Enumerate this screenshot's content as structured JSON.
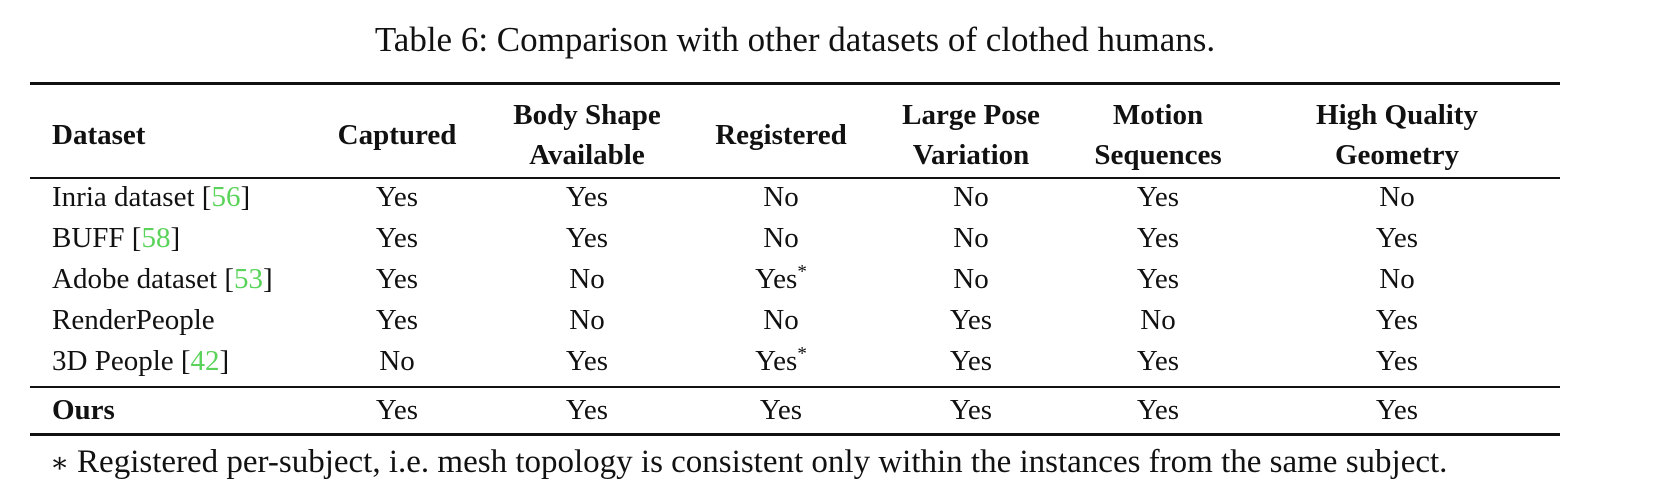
{
  "caption": "Table 6: Comparison with other datasets of clothed humans.",
  "headers": [
    {
      "line1": "Dataset",
      "line2": ""
    },
    {
      "line1": "Captured",
      "line2": ""
    },
    {
      "line1": "Body Shape",
      "line2": "Available"
    },
    {
      "line1": "Registered",
      "line2": ""
    },
    {
      "line1": "Large Pose",
      "line2": "Variation"
    },
    {
      "line1": "Motion",
      "line2": "Sequences"
    },
    {
      "line1": "High Quality",
      "line2": "Geometry"
    }
  ],
  "rows": [
    {
      "name": "Inria dataset ",
      "ref": "56",
      "cells": [
        "Yes",
        "Yes",
        "No",
        "No",
        "Yes",
        "No"
      ],
      "stars": [
        false,
        false,
        false,
        false,
        false,
        false
      ]
    },
    {
      "name": "BUFF ",
      "ref": "58",
      "cells": [
        "Yes",
        "Yes",
        "No",
        "No",
        "Yes",
        "Yes"
      ],
      "stars": [
        false,
        false,
        false,
        false,
        false,
        false
      ]
    },
    {
      "name": "Adobe dataset ",
      "ref": "53",
      "cells": [
        "Yes",
        "No",
        "Yes",
        "No",
        "Yes",
        "No"
      ],
      "stars": [
        false,
        false,
        true,
        false,
        false,
        false
      ]
    },
    {
      "name": "RenderPeople",
      "ref": "",
      "cells": [
        "Yes",
        "No",
        "No",
        "Yes",
        "No",
        "Yes"
      ],
      "stars": [
        false,
        false,
        false,
        false,
        false,
        false
      ]
    },
    {
      "name": "3D People ",
      "ref": "42",
      "cells": [
        "No",
        "Yes",
        "Yes",
        "Yes",
        "Yes",
        "Yes"
      ],
      "stars": [
        false,
        false,
        true,
        false,
        false,
        false
      ]
    }
  ],
  "ours": {
    "name": "Ours",
    "cells": [
      "Yes",
      "Yes",
      "Yes",
      "Yes",
      "Yes",
      "Yes"
    ]
  },
  "star_symbol": "*",
  "footnote": {
    "symbol": "∗",
    "text": "Registered per-subject, i.e. mesh topology is consistent only within the instances from the same subject."
  },
  "colors": {
    "text": "#111111",
    "reference_link": "#5ad35a"
  }
}
